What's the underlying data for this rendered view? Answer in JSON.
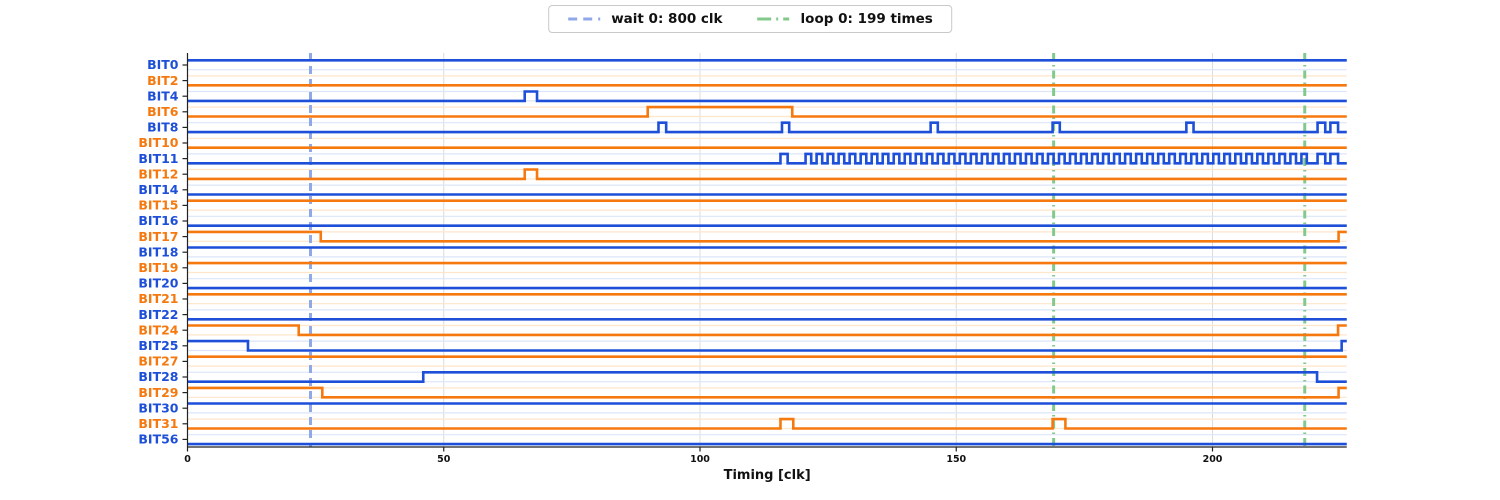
{
  "legend": {
    "items": [
      {
        "id": "wait",
        "label": "wait 0: 800 clk"
      },
      {
        "id": "loop",
        "label": "loop 0: 199 times"
      }
    ]
  },
  "axis": {
    "xlabel": "Timing [clk]",
    "xticks": [
      0,
      50,
      100,
      150,
      200
    ],
    "x_range": [
      0,
      226.2
    ]
  },
  "colors": {
    "blue": "#1d4fd8",
    "orange": "#f5790f",
    "blue_faint": "#dce6f8",
    "orange_faint": "#fde6cb",
    "wait_line": "#8fa8e8",
    "loop_line": "#83c98b",
    "grid": "#dcdcdc",
    "spine": "#222222",
    "tick_text": "#111111"
  },
  "markers": [
    {
      "kind": "wait",
      "clk": 24.0
    },
    {
      "kind": "loop",
      "clk": 169.0
    },
    {
      "kind": "loop",
      "clk": 218.0
    }
  ],
  "chart_data": {
    "type": "digital-timing",
    "xlabel": "Timing [clk]",
    "x_range": [
      0,
      226.2
    ],
    "note": "25 digital signals, low/high waveforms; wait marker at clk 24, loop markers at clk 169 and 218",
    "signals": [
      {
        "name": "BIT0",
        "color": "blue",
        "base": "high"
      },
      {
        "name": "BIT2",
        "color": "orange",
        "base": "low"
      },
      {
        "name": "BIT4",
        "color": "blue",
        "base": "low",
        "high_intervals": [
          [
            65.8,
            68.2
          ]
        ]
      },
      {
        "name": "BIT6",
        "color": "orange",
        "base": "low",
        "high_intervals": [
          [
            89.8,
            118.0
          ]
        ]
      },
      {
        "name": "BIT8",
        "color": "blue",
        "base": "low",
        "high_intervals": [
          [
            91.9,
            93.4
          ],
          [
            116.0,
            117.4
          ],
          [
            145.0,
            146.4
          ],
          [
            168.8,
            170.2
          ],
          [
            194.9,
            196.3
          ],
          [
            220.5,
            222.0
          ],
          [
            223.0,
            224.5
          ]
        ]
      },
      {
        "name": "BIT10",
        "color": "orange",
        "base": "low"
      },
      {
        "name": "BIT11",
        "color": "blue",
        "base": "low",
        "high_intervals": [
          [
            115.7,
            117.1
          ],
          [
            220.5,
            222.0
          ],
          [
            223.0,
            224.5
          ]
        ],
        "clock_burst": {
          "start": 120.6,
          "end": 218.4,
          "period": 2.15,
          "duty": 0.51
        }
      },
      {
        "name": "BIT12",
        "color": "orange",
        "base": "low",
        "high_intervals": [
          [
            65.8,
            68.2
          ]
        ]
      },
      {
        "name": "BIT14",
        "color": "blue",
        "base": "low"
      },
      {
        "name": "BIT15",
        "color": "orange",
        "base": "high"
      },
      {
        "name": "BIT16",
        "color": "blue",
        "base": "low"
      },
      {
        "name": "BIT17",
        "color": "orange",
        "base": "high",
        "low_intervals": [
          [
            26.0,
            224.6
          ]
        ]
      },
      {
        "name": "BIT18",
        "color": "blue",
        "base": "high"
      },
      {
        "name": "BIT19",
        "color": "orange",
        "base": "high"
      },
      {
        "name": "BIT20",
        "color": "blue",
        "base": "low"
      },
      {
        "name": "BIT21",
        "color": "orange",
        "base": "high"
      },
      {
        "name": "BIT22",
        "color": "blue",
        "base": "low"
      },
      {
        "name": "BIT24",
        "color": "orange",
        "base": "high",
        "low_intervals": [
          [
            21.7,
            224.5
          ]
        ]
      },
      {
        "name": "BIT25",
        "color": "blue",
        "base": "high",
        "low_intervals": [
          [
            11.8,
            225.2
          ]
        ]
      },
      {
        "name": "BIT27",
        "color": "orange",
        "base": "high"
      },
      {
        "name": "BIT28",
        "color": "blue",
        "base": "low",
        "high_intervals": [
          [
            46.0,
            220.4
          ]
        ]
      },
      {
        "name": "BIT29",
        "color": "orange",
        "base": "high",
        "low_intervals": [
          [
            26.3,
            224.6
          ]
        ]
      },
      {
        "name": "BIT30",
        "color": "blue",
        "base": "high"
      },
      {
        "name": "BIT31",
        "color": "orange",
        "base": "low",
        "high_intervals": [
          [
            115.7,
            118.2
          ],
          [
            168.8,
            171.3
          ]
        ]
      },
      {
        "name": "BIT56",
        "color": "blue",
        "base": "low"
      }
    ]
  }
}
